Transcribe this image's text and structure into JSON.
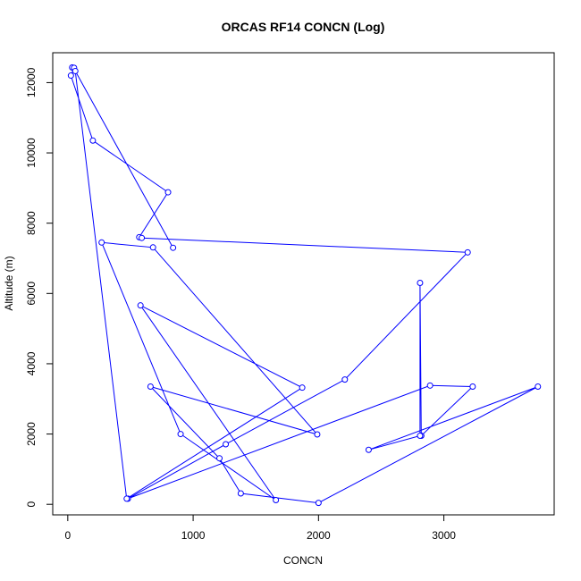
{
  "chart_data": {
    "type": "line",
    "title": "ORCAS RF14 CONCN (Log)",
    "xlabel": "CONCN",
    "ylabel": "Altitude (m)",
    "xlim": [
      -120,
      3880
    ],
    "ylim": [
      -300,
      12850
    ],
    "x_ticks": [
      0,
      1000,
      2000,
      3000
    ],
    "x_tick_labels": [
      "0",
      "1000",
      "2000",
      "3000"
    ],
    "y_ticks": [
      0,
      2000,
      4000,
      6000,
      8000,
      10000,
      12000
    ],
    "y_tick_labels": [
      "0",
      "2000",
      "4000",
      "6000",
      "8000",
      "10000",
      "12000"
    ],
    "grid": false,
    "line_color": "#0000ff",
    "marker": "open-circle",
    "series": [
      {
        "x": [
          35,
          50,
          25,
          200,
          800,
          570,
          590,
          3190,
          2210,
          1260,
          480,
          2890,
          3230,
          2820,
          2810,
          2810,
          2400,
          3750,
          2000,
          1380,
          1210,
          660,
          1990,
          680,
          270,
          900,
          1660,
          580,
          1870,
          470,
          60,
          840
        ],
        "y": [
          12430,
          12420,
          12200,
          10350,
          8880,
          7600,
          7580,
          7170,
          3550,
          1710,
          160,
          3380,
          3350,
          1950,
          6300,
          1950,
          1550,
          3350,
          40,
          310,
          1310,
          3350,
          1990,
          7310,
          7450,
          2000,
          120,
          5660,
          3320,
          160,
          12330,
          7300
        ]
      }
    ]
  }
}
